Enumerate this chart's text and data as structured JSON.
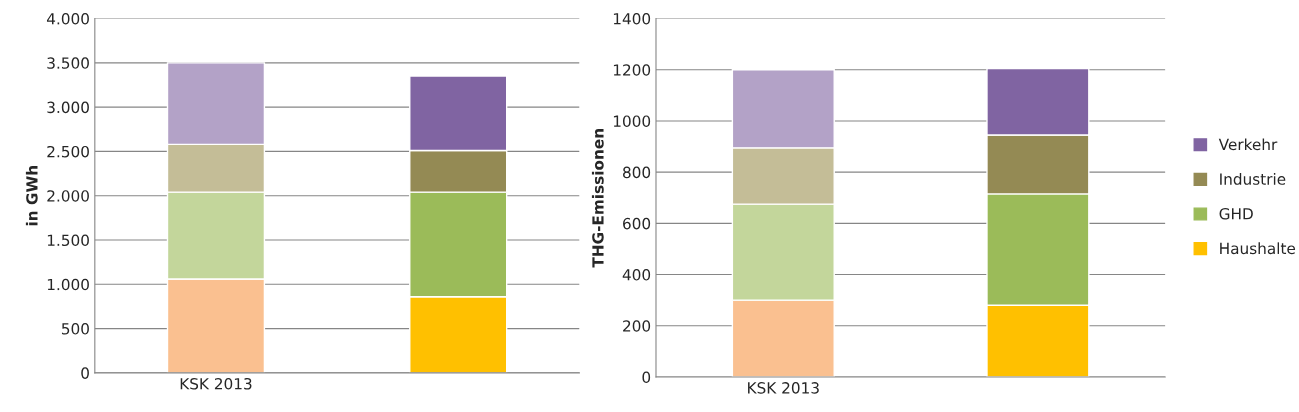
{
  "chart_data": [
    {
      "type": "bar",
      "stacked": true,
      "ylabel": "in GWh",
      "categories": [
        "KSK 2013",
        null
      ],
      "ylim": [
        0,
        4000
      ],
      "yticks": [
        0,
        {
          "value": 500,
          "label": "500"
        },
        {
          "value": 1000,
          "label": "1.000"
        },
        {
          "value": 1500,
          "label": "1.500"
        },
        {
          "value": 2000,
          "label": "2.000"
        },
        {
          "value": 2500,
          "label": "2.500"
        },
        {
          "value": 3000,
          "label": "3.000"
        },
        {
          "value": 3500,
          "label": "3.500"
        },
        {
          "value": 4000,
          "label": "4.000"
        }
      ],
      "grid": "y",
      "legend": false,
      "series": [
        {
          "colors": [
            "#fac090",
            "#ffc000"
          ],
          "values": [
            1060,
            860
          ]
        },
        {
          "colors": [
            "#c3d69b",
            "#9bbb59"
          ],
          "values": [
            980,
            1180
          ]
        },
        {
          "colors": [
            "#c4bd97",
            "#948a54"
          ],
          "values": [
            540,
            470
          ]
        },
        {
          "colors": [
            "#b3a2c7",
            "#8064a2"
          ],
          "values": [
            920,
            840
          ]
        }
      ]
    },
    {
      "type": "bar",
      "stacked": true,
      "ylabel": "THG-Emissionen",
      "categories": [
        "KSK 2013",
        null
      ],
      "ylim": [
        0,
        1400
      ],
      "yticks": [
        0,
        200,
        400,
        600,
        800,
        1000,
        1200,
        1400
      ],
      "grid": "y",
      "legend": "right",
      "series": [
        {
          "name": "Haushalte",
          "color": "#ffc000",
          "colors": [
            "#fac090",
            "#ffc000"
          ],
          "values": [
            300,
            280
          ]
        },
        {
          "name": "GHD",
          "color": "#9bbb59",
          "colors": [
            "#c3d69b",
            "#9bbb59"
          ],
          "values": [
            375,
            435
          ]
        },
        {
          "name": "Industrie",
          "color": "#948a54",
          "colors": [
            "#c4bd97",
            "#948a54"
          ],
          "values": [
            220,
            230
          ]
        },
        {
          "name": "Verkehr",
          "color": "#8064a2",
          "colors": [
            "#b3a2c7",
            "#8064a2"
          ],
          "values": [
            305,
            260
          ]
        }
      ]
    }
  ]
}
